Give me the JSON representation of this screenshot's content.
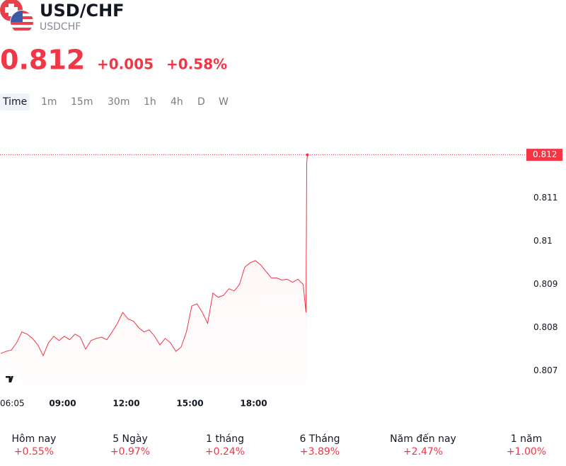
{
  "header": {
    "title": "USD/CHF",
    "symbol": "USDCHF",
    "price": "0.812",
    "change": "+0.005",
    "change_pct": "+0.58%"
  },
  "tabs": [
    "Time",
    "1m",
    "15m",
    "30m",
    "1h",
    "4h",
    "D",
    "W"
  ],
  "chart_data": {
    "type": "line",
    "x": [
      "06:05",
      "06:20",
      "06:35",
      "06:50",
      "07:05",
      "07:20",
      "07:35",
      "07:50",
      "08:05",
      "08:20",
      "08:35",
      "08:50",
      "09:05",
      "09:20",
      "09:35",
      "09:50",
      "10:05",
      "10:20",
      "10:35",
      "10:50",
      "11:05",
      "11:20",
      "11:35",
      "11:50",
      "12:05",
      "12:20",
      "12:35",
      "12:50",
      "13:05",
      "13:20",
      "13:35",
      "13:50",
      "14:05",
      "14:20",
      "14:35",
      "14:50",
      "15:05",
      "15:20",
      "15:35",
      "15:50",
      "16:05",
      "16:20",
      "16:35",
      "16:50",
      "17:05",
      "17:20",
      "17:35",
      "17:50",
      "18:05",
      "18:20",
      "18:35",
      "18:50",
      "19:05",
      "19:20",
      "19:35",
      "19:50",
      "20:05",
      "20:20",
      "20:28",
      "20:30",
      "20:32"
    ],
    "series": [
      {
        "name": "USDCHF",
        "color": "#f23645",
        "values": [
          0.8074,
          0.80745,
          0.80748,
          0.80765,
          0.8079,
          0.80785,
          0.80775,
          0.8076,
          0.80735,
          0.80765,
          0.8078,
          0.8077,
          0.8078,
          0.80772,
          0.80785,
          0.80778,
          0.8075,
          0.8077,
          0.80775,
          0.80778,
          0.80772,
          0.8079,
          0.8081,
          0.80835,
          0.8082,
          0.80815,
          0.808,
          0.8079,
          0.80795,
          0.8078,
          0.8076,
          0.80775,
          0.80765,
          0.80745,
          0.80755,
          0.8079,
          0.8085,
          0.80855,
          0.80835,
          0.8081,
          0.8088,
          0.8087,
          0.80875,
          0.8089,
          0.80885,
          0.809,
          0.8094,
          0.8095,
          0.80955,
          0.80945,
          0.8093,
          0.80915,
          0.80915,
          0.8091,
          0.80912,
          0.80905,
          0.80912,
          0.809,
          0.80835,
          0.8118,
          0.812
        ]
      }
    ],
    "ylim": [
      0.8066,
      0.8126
    ],
    "yticks": [
      0.807,
      0.808,
      0.809,
      0.81,
      0.811,
      0.812
    ],
    "xticks": [
      "06:05",
      "09:00",
      "12:00",
      "15:00",
      "18:00"
    ]
  },
  "performance": [
    {
      "label": "Hôm nay",
      "value": "+0.55%"
    },
    {
      "label": "5 Ngày",
      "value": "+0.97%"
    },
    {
      "label": "1 tháng",
      "value": "+0.24%"
    },
    {
      "label": "6 Tháng",
      "value": "+3.89%"
    },
    {
      "label": "Năm đến nay",
      "value": "+2.47%"
    },
    {
      "label": "1 năm",
      "value": "+1.00%"
    }
  ]
}
